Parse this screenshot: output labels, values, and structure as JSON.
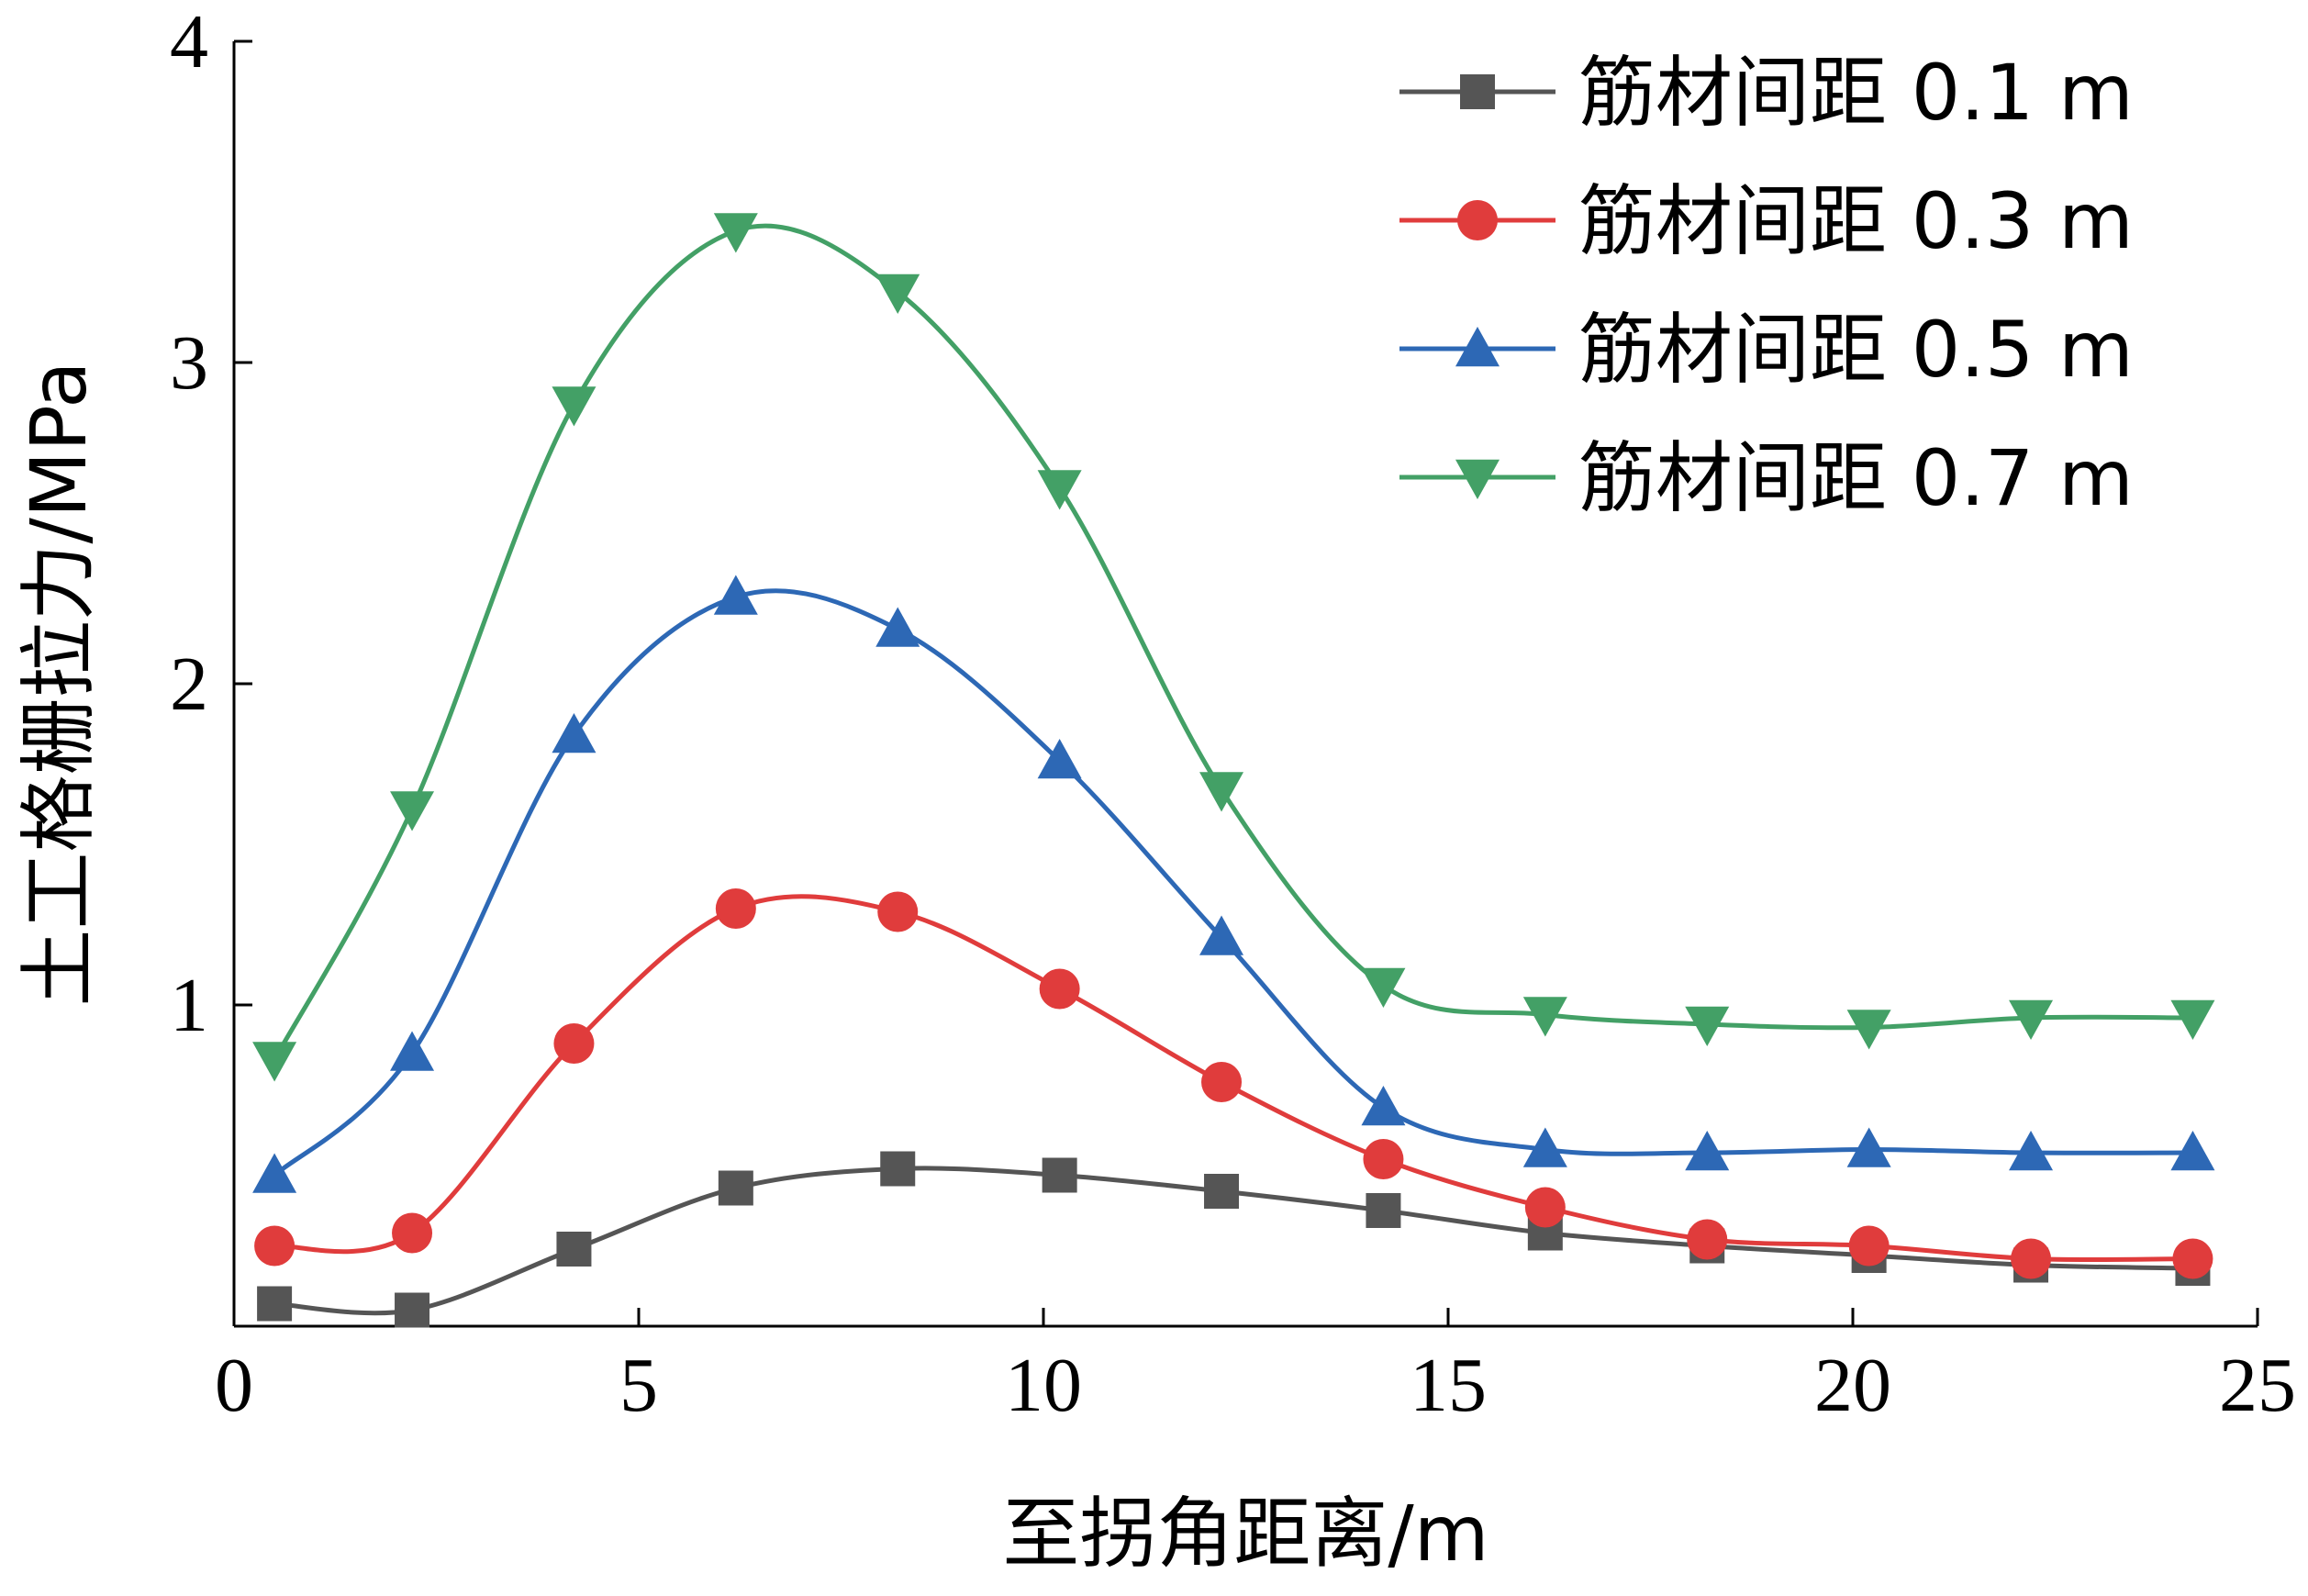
{
  "chart_data": {
    "type": "line",
    "xlabel": "至拐角距离/m",
    "ylabel": "土工格栅拉力/MPa",
    "xlim": [
      0,
      25
    ],
    "ylim": [
      0,
      4
    ],
    "xticks": [
      "0",
      "5",
      "10",
      "15",
      "20",
      "25"
    ],
    "yticks": [
      "1",
      "2",
      "3",
      "4"
    ],
    "grid": false,
    "legend_position": "top-right",
    "x": [
      0.5,
      2.2,
      4.2,
      6.2,
      8.2,
      10.2,
      12.2,
      14.2,
      16.2,
      18.2,
      20.2,
      22.2,
      24.2
    ],
    "series": [
      {
        "name": "筋材间距 0.1 m",
        "color": "#555555",
        "marker": "square",
        "values": [
          0.07,
          0.05,
          0.24,
          0.43,
          0.49,
          0.47,
          0.42,
          0.36,
          0.29,
          0.25,
          0.22,
          0.19,
          0.18
        ]
      },
      {
        "name": "筋材间距 0.3 m",
        "color": "#e03c3c",
        "marker": "circle",
        "values": [
          0.25,
          0.29,
          0.88,
          1.3,
          1.29,
          1.05,
          0.76,
          0.52,
          0.37,
          0.27,
          0.25,
          0.21,
          0.21
        ]
      },
      {
        "name": "筋材间距 0.5 m",
        "color": "#2d68b5",
        "marker": "triangle-up",
        "values": [
          0.47,
          0.85,
          1.84,
          2.27,
          2.17,
          1.76,
          1.21,
          0.68,
          0.55,
          0.54,
          0.55,
          0.54,
          0.54
        ]
      },
      {
        "name": "筋材间距 0.7 m",
        "color": "#43a066",
        "marker": "triangle-down",
        "values": [
          0.83,
          1.61,
          2.87,
          3.41,
          3.22,
          2.61,
          1.67,
          1.06,
          0.97,
          0.94,
          0.93,
          0.96,
          0.96
        ]
      }
    ]
  }
}
